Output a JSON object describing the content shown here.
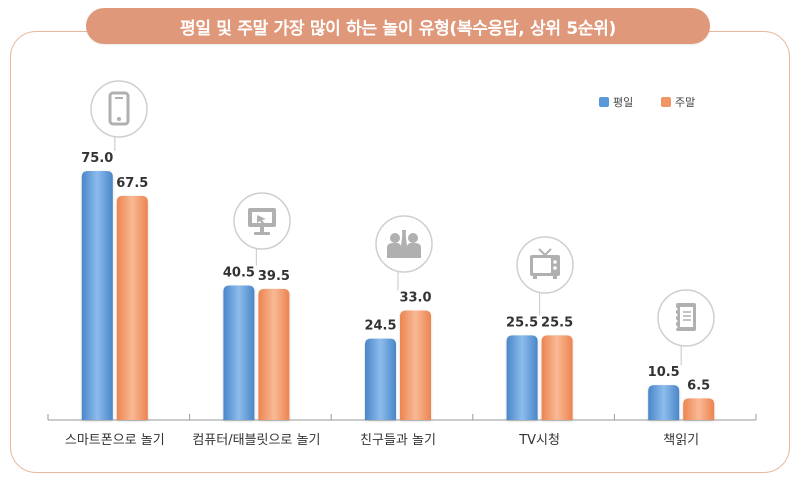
{
  "chart_data": {
    "type": "bar",
    "title": "평일 및 주말 가장 많이 하는 놀이 유형(복수응답, 상위 5순위)",
    "categories": [
      "스마트폰으로 놀기",
      "컴퓨터/태블릿으로 놀기",
      "친구들과 놀기",
      "TV시청",
      "책읽기"
    ],
    "category_icons": [
      "smartphone-icon",
      "monitor-icon",
      "friends-icon",
      "tv-icon",
      "book-icon"
    ],
    "series": [
      {
        "name": "평일",
        "values": [
          75.0,
          40.5,
          24.5,
          25.5,
          10.5
        ],
        "color": "#5b9ad8"
      },
      {
        "name": "주말",
        "values": [
          67.5,
          39.5,
          33.0,
          25.5,
          6.5
        ],
        "color": "#f09565"
      }
    ],
    "value_labels": [
      [
        "75.0",
        "40.5",
        "24.5",
        "25.5",
        "10.5"
      ],
      [
        "67.5",
        "39.5",
        "33.0",
        "25.5",
        "6.5"
      ]
    ],
    "ylim": [
      0,
      100
    ],
    "legend_position": "top-right",
    "grid": false
  }
}
